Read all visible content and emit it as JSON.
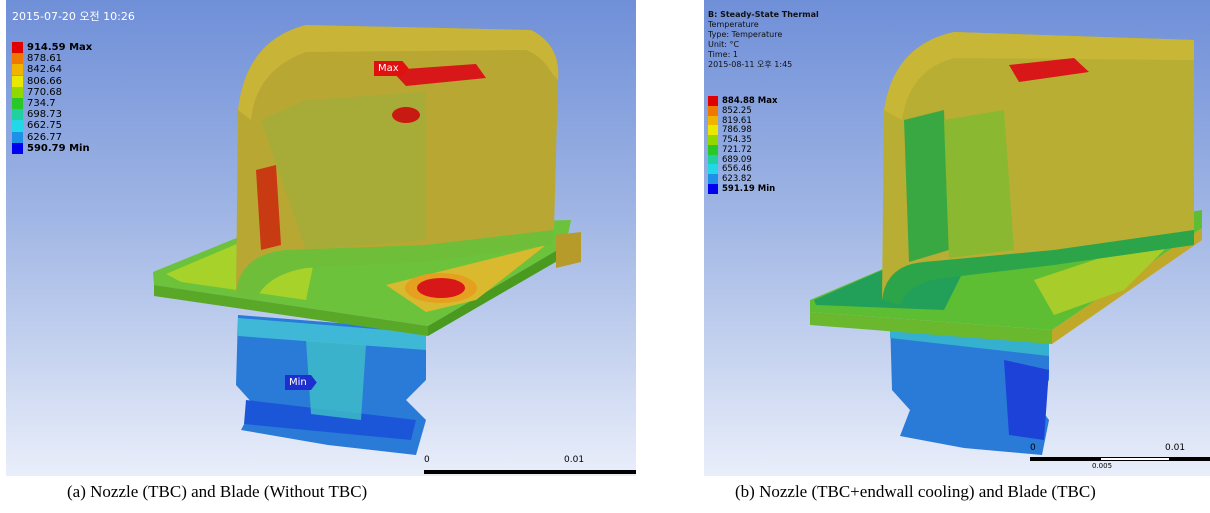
{
  "panels": {
    "a": {
      "timestamp": "2015-07-20 오전 10:26",
      "legend": [
        "914.59 Max",
        "878.61",
        "842.64",
        "806.66",
        "770.68",
        "734.7",
        "698.73",
        "662.75",
        "626.77",
        "590.79 Min"
      ],
      "max_tag": "Max",
      "min_tag": "Min",
      "scale": {
        "start": "0",
        "end": "0.01"
      },
      "caption": "(a) Nozzle (TBC) and Blade (Without TBC)"
    },
    "b": {
      "header": {
        "title": "B: Steady-State Thermal",
        "quantity": "Temperature",
        "type": "Type: Temperature",
        "unit": "Unit: °C",
        "time": "Time: 1",
        "timestamp": "2015-08-11 오후 1:45"
      },
      "legend": [
        "884.88 Max",
        "852.25",
        "819.61",
        "786.98",
        "754.35",
        "721.72",
        "689.09",
        "656.46",
        "623.82",
        "591.19 Min"
      ],
      "scale": {
        "start": "0",
        "mid": "0.005",
        "end": "0.01"
      },
      "caption": "(b) Nozzle (TBC+endwall cooling) and Blade (TBC)"
    }
  },
  "legend_colors": [
    "#e00000",
    "#f07800",
    "#f0b400",
    "#e8e800",
    "#90d800",
    "#28c828",
    "#20d0a0",
    "#20d8e8",
    "#1e90e8",
    "#0000f0"
  ]
}
